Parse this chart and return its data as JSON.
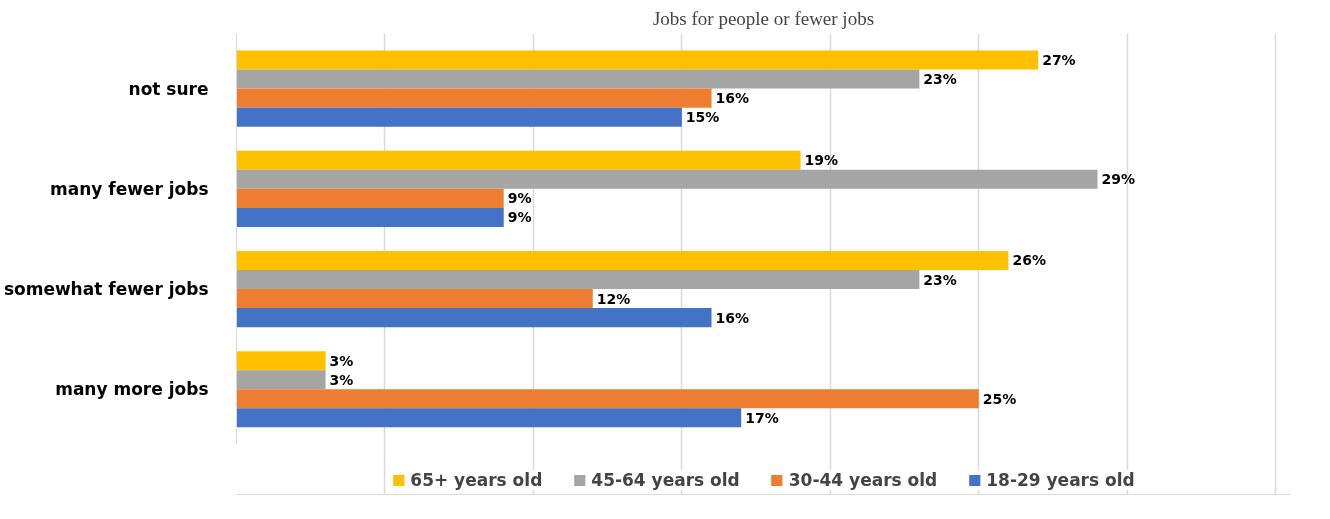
{
  "chart_data": {
    "type": "bar",
    "orientation": "horizontal",
    "title": "Jobs for people or fewer jobs",
    "categories": [
      "not sure",
      "many fewer jobs",
      "somewhat fewer jobs",
      "many more jobs"
    ],
    "series": [
      {
        "name": "65+ years old",
        "color": "#ffc000",
        "values": [
          27,
          19,
          26,
          3
        ],
        "value_labels": [
          "27%",
          "19%",
          "26%",
          "3%"
        ]
      },
      {
        "name": "45-64 years old",
        "color": "#a5a5a5",
        "values": [
          23,
          29,
          23,
          3
        ],
        "value_labels": [
          "23%",
          "29%",
          "23%",
          "3%"
        ]
      },
      {
        "name": "30-44 years old",
        "color": "#ed7d31",
        "values": [
          16,
          9,
          12,
          25
        ],
        "value_labels": [
          "16%",
          "9%",
          "12%",
          "25%"
        ]
      },
      {
        "name": "18-29 years old",
        "color": "#4472c4",
        "values": [
          15,
          9,
          16,
          17
        ],
        "value_labels": [
          "15%",
          "9%",
          "16%",
          "17%"
        ]
      }
    ],
    "xlim": [
      0,
      35.5
    ],
    "xticks": [
      {
        "value": 0,
        "label": null
      },
      {
        "value": 5,
        "label": null
      },
      {
        "value": 10,
        "label": null
      },
      {
        "value": 15,
        "label": null
      },
      {
        "value": 20,
        "label": null
      },
      {
        "value": 25,
        "label": null
      },
      {
        "value": 30,
        "label": null
      },
      {
        "value": 35,
        "label": null
      }
    ],
    "tick_labels": "y",
    "grid": "x",
    "legend": "bottom"
  }
}
